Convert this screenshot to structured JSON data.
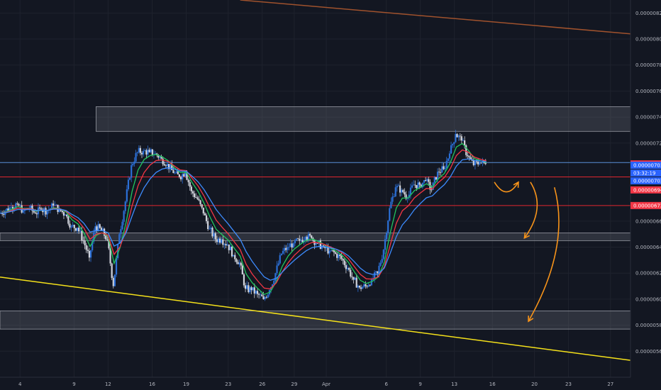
{
  "chart_data": {
    "type": "candlestick",
    "ylim": [
      5.4e-06,
      8.3e-06
    ],
    "y_ticks": [
      {
        "value": 8.2e-06,
        "label": "0.00000820"
      },
      {
        "value": 8e-06,
        "label": "0.00000800"
      },
      {
        "value": 7.8e-06,
        "label": "0.00000780"
      },
      {
        "value": 7.6e-06,
        "label": "0.00000760"
      },
      {
        "value": 7.4e-06,
        "label": "0.00000740"
      },
      {
        "value": 7.2e-06,
        "label": "0.00000720"
      },
      {
        "value": 6.6e-06,
        "label": "0.00000660"
      },
      {
        "value": 6.4e-06,
        "label": "0.00000640"
      },
      {
        "value": 6.2e-06,
        "label": "0.00000620"
      },
      {
        "value": 6e-06,
        "label": "0.00000600"
      },
      {
        "value": 5.8e-06,
        "label": "0.00000580"
      },
      {
        "value": 5.6e-06,
        "label": "0.00000560"
      }
    ],
    "xlim": [
      0,
      31.5
    ],
    "x_ticks": [
      {
        "value": 1,
        "label": "4"
      },
      {
        "value": 3.7,
        "label": "9"
      },
      {
        "value": 5.4,
        "label": "12"
      },
      {
        "value": 7.6,
        "label": "16"
      },
      {
        "value": 9.3,
        "label": "19"
      },
      {
        "value": 11.4,
        "label": "23"
      },
      {
        "value": 13.1,
        "label": "26"
      },
      {
        "value": 14.7,
        "label": "29"
      },
      {
        "value": 16.3,
        "label": "Apr"
      },
      {
        "value": 19.3,
        "label": "6"
      },
      {
        "value": 21,
        "label": "9"
      },
      {
        "value": 22.7,
        "label": "13"
      },
      {
        "value": 24.6,
        "label": "16"
      },
      {
        "value": 26.7,
        "label": "20"
      },
      {
        "value": 28.4,
        "label": "23"
      },
      {
        "value": 30.5,
        "label": "27"
      }
    ],
    "price_badges": [
      {
        "value": 7.04e-06,
        "label": "0.00000704",
        "color": "#f23645"
      },
      {
        "value": 7.03e-06,
        "label": "0.00000703",
        "color": "#2962ff"
      },
      {
        "value": 6.97e-06,
        "label": "03:32:19",
        "color": "#2962ff"
      },
      {
        "value": 6.91e-06,
        "label": "0.00000703",
        "color": "#2962ff"
      },
      {
        "value": 6.84e-06,
        "label": "0.00000694",
        "color": "#f23645"
      },
      {
        "value": 6.72e-06,
        "label": "0.00000672",
        "color": "#f23645"
      }
    ],
    "horizontal_lines": [
      {
        "value": 7.05e-06,
        "color": "#5b8fd6"
      },
      {
        "value": 6.94e-06,
        "color": "#e0262f"
      },
      {
        "value": 6.72e-06,
        "color": "#e0262f"
      }
    ],
    "zones": [
      {
        "x0": 4.8,
        "x1": 31.5,
        "y0": 7.29e-06,
        "y1": 7.48e-06
      },
      {
        "x0": 0,
        "x1": 31.5,
        "y0": 6.45e-06,
        "y1": 6.51e-06
      },
      {
        "x0": 0,
        "x1": 31.5,
        "y0": 5.77e-06,
        "y1": 5.91e-06
      }
    ],
    "trendlines": [
      {
        "x0": 0,
        "y0": 6.17e-06,
        "x1": 31.5,
        "y1": 5.53e-06,
        "color": "#f5e11a"
      },
      {
        "x0": 12,
        "y0": 8.3e-06,
        "x1": 31.5,
        "y1": 8.04e-06,
        "color": "#a0522d"
      }
    ],
    "series": [
      {
        "kind": "close",
        "x": [
          0,
          0.3,
          0.6,
          0.9,
          1.2,
          1.5,
          1.8,
          2.1,
          2.4,
          2.7,
          3,
          3.3,
          3.6,
          3.9,
          4.2,
          4.5,
          4.8,
          5.1,
          5.4,
          5.7,
          6,
          6.3,
          6.6,
          6.9,
          7.2,
          7.5,
          7.8,
          8.1,
          8.4,
          8.7,
          9,
          9.3,
          9.6,
          9.9,
          10.2,
          10.5,
          10.8,
          11.1,
          11.4,
          11.7,
          12,
          12.3,
          12.6,
          12.9,
          13.2,
          13.5,
          13.8,
          14.1,
          14.4,
          14.7,
          15,
          15.3,
          15.6,
          15.9,
          16.2,
          16.5,
          16.8,
          17.1,
          17.4,
          17.7,
          18,
          18.3,
          18.6,
          18.9,
          19.2,
          19.5,
          19.8,
          20.1,
          20.4,
          20.7,
          21,
          21.3,
          21.6,
          21.9,
          22.2,
          22.5,
          22.8,
          23.1,
          23.4,
          23.7,
          24,
          24.3
        ],
        "close": [
          6.66e-06,
          6.68e-06,
          6.71e-06,
          6.73e-06,
          6.68e-06,
          6.7e-06,
          6.66e-06,
          6.69e-06,
          6.68e-06,
          6.72e-06,
          6.69e-06,
          6.65e-06,
          6.56e-06,
          6.55e-06,
          6.45e-06,
          6.32e-06,
          6.56e-06,
          6.53e-06,
          6.46e-06,
          6.1e-06,
          6.5e-06,
          6.75e-06,
          7.03e-06,
          7.13e-06,
          7.14e-06,
          7.13e-06,
          7.12e-06,
          7.08e-06,
          7.04e-06,
          6.97e-06,
          6.94e-06,
          6.98e-06,
          6.83e-06,
          6.77e-06,
          6.66e-06,
          6.54e-06,
          6.46e-06,
          6.46e-06,
          6.42e-06,
          6.34e-06,
          6.28e-06,
          6.08e-06,
          6.07e-06,
          6.04e-06,
          6e-06,
          6.07e-06,
          6.2e-06,
          6.35e-06,
          6.4e-06,
          6.43e-06,
          6.45e-06,
          6.48e-06,
          6.47e-06,
          6.43e-06,
          6.4e-06,
          6.37e-06,
          6.35e-06,
          6.31e-06,
          6.24e-06,
          6.15e-06,
          6.09e-06,
          6.1e-06,
          6.15e-06,
          6.2e-06,
          6.38e-06,
          6.7e-06,
          6.86e-06,
          6.84e-06,
          6.78e-06,
          6.88e-06,
          6.88e-06,
          6.91e-06,
          6.84e-06,
          6.98e-06,
          7e-06,
          7.12e-06,
          7.27e-06,
          7.22e-06,
          7.1e-06,
          7.03e-06,
          7.05e-06,
          7.04e-06
        ]
      },
      {
        "kind": "ema",
        "period": 8,
        "color": "#22c55e"
      },
      {
        "kind": "ema",
        "period": 13,
        "color": "#f23645"
      },
      {
        "kind": "ema",
        "period": 21,
        "color": "#3d8bfd"
      }
    ],
    "annotations": [
      {
        "kind": "arrow",
        "path": [
          [
            24.7,
            6.9e-06
          ],
          [
            25.3,
            6.75e-06
          ],
          [
            25.9,
            6.9e-06
          ]
        ],
        "color": "#f7931a"
      },
      {
        "kind": "arrow",
        "path": [
          [
            26.5,
            6.9e-06
          ],
          [
            27.3,
            6.7e-06
          ],
          [
            26.2,
            6.47e-06
          ]
        ],
        "color": "#f7931a"
      },
      {
        "kind": "arrow",
        "path": [
          [
            27.7,
            6.86e-06
          ],
          [
            28.5,
            6.4e-06
          ],
          [
            26.4,
            5.83e-06
          ]
        ],
        "color": "#f7931a"
      }
    ]
  }
}
